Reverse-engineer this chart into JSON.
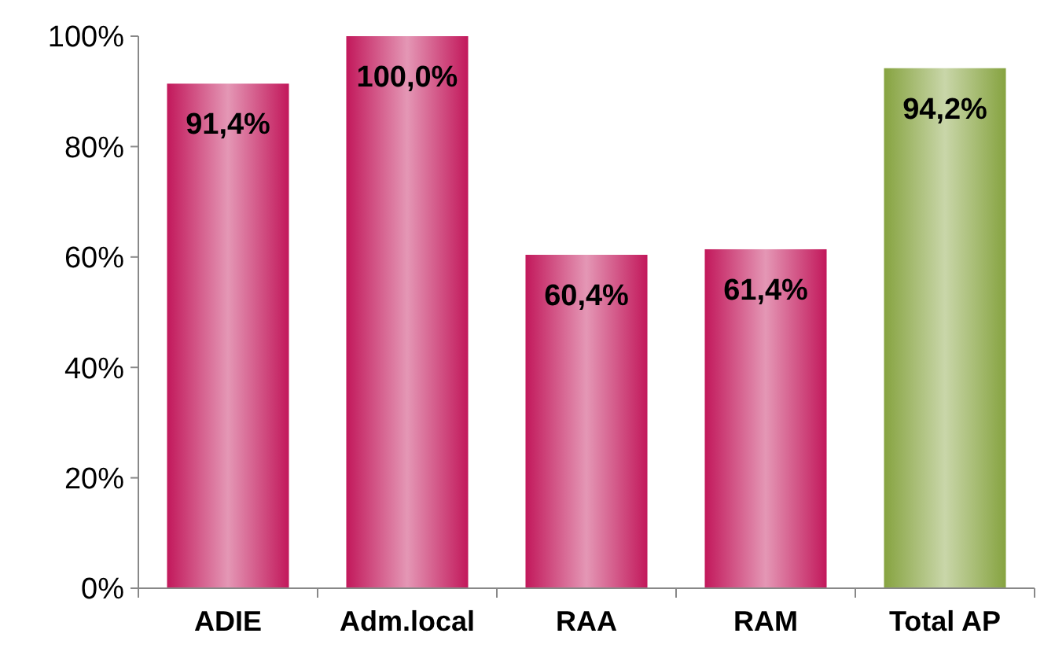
{
  "chart_data": {
    "type": "bar",
    "categories": [
      "ADIE",
      "Adm.local",
      "RAA",
      "RAM",
      "Total AP"
    ],
    "values": [
      91.4,
      100,
      60.4,
      61.4,
      94.2
    ],
    "colors": [
      "#c2185b",
      "#c2185b",
      "#c2185b",
      "#c2185b",
      "#86a340"
    ],
    "value_labels": [
      "91,4%",
      "100,0%",
      "60,4%",
      "61,4%",
      "94,2%"
    ],
    "ylim": [
      0,
      100
    ],
    "yticks": [
      {
        "value": 0,
        "label": "0%"
      },
      {
        "value": 20,
        "label": "20%"
      },
      {
        "value": 40,
        "label": "40%"
      },
      {
        "value": 60,
        "label": "60%"
      },
      {
        "value": 80,
        "label": "80%"
      },
      {
        "value": 100,
        "label": "100%"
      }
    ],
    "grid": false
  }
}
